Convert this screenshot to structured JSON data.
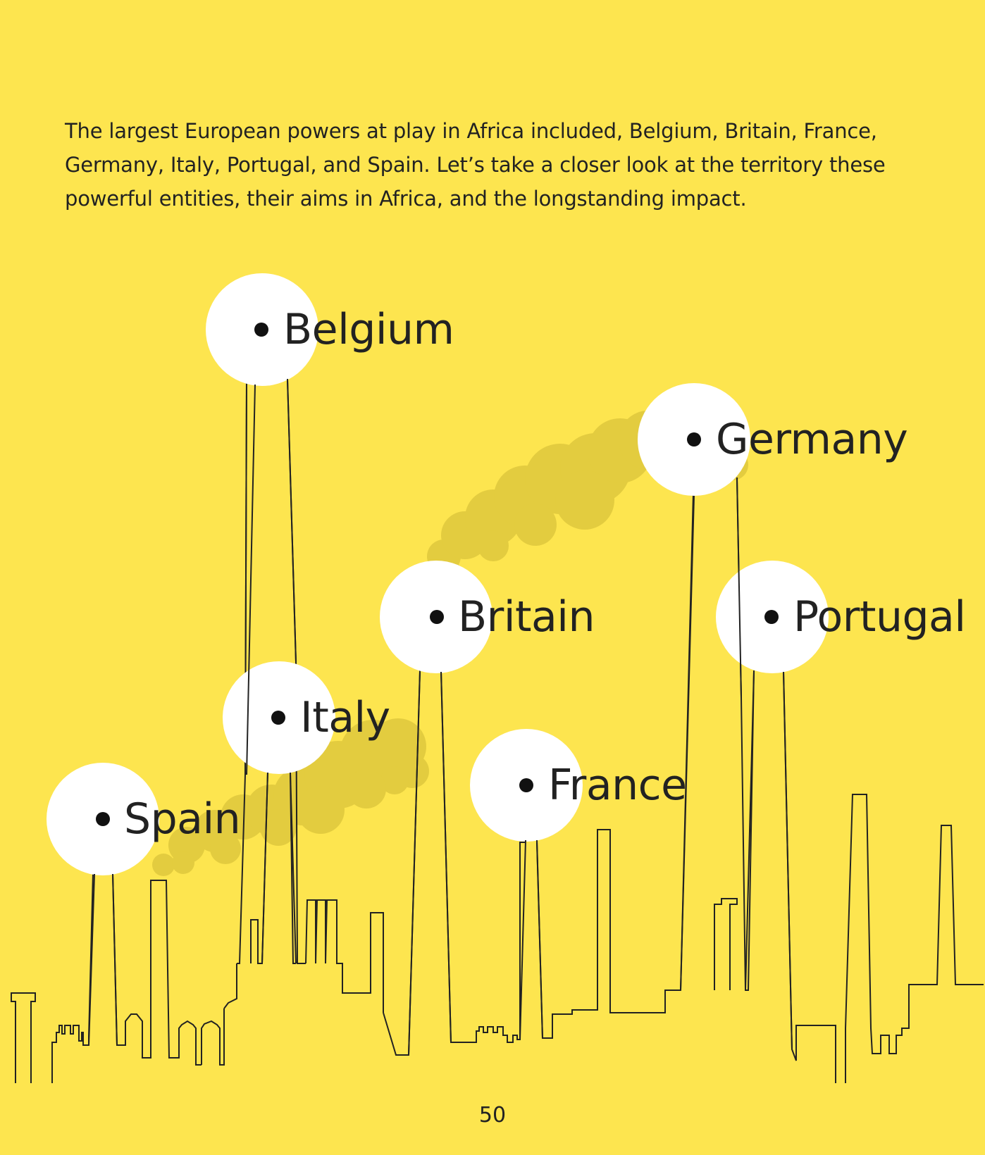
{
  "intro_text": "The largest European powers at play in Africa included, Belgium, Britain, France, Germany, Italy, Portugal, and Spain. Let’s take a closer look at the territory these powerful entities, their aims in Africa, and the longstanding impact.",
  "countries": [
    "Belgium",
    "Germany",
    "Britain",
    "Portugal",
    "Italy",
    "France",
    "Spain"
  ],
  "page_number": "50",
  "colors": {
    "background": "#fde54f",
    "smoke": "#e3cc3f",
    "bubble": "#ffffff",
    "text": "#222222",
    "line": "#222222"
  }
}
